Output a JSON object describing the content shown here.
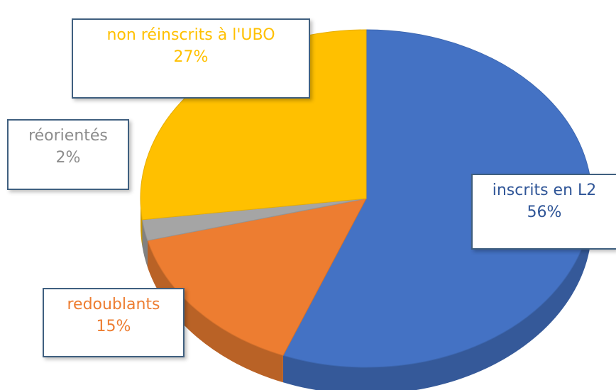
{
  "chart_data": {
    "type": "pie",
    "style": "3d",
    "slices": [
      {
        "label": "inscrits en L2",
        "value": 56,
        "display": "56%",
        "color": "#4472c4"
      },
      {
        "label": "redoublants",
        "value": 15,
        "display": "15%",
        "color": "#ed7d31"
      },
      {
        "label": "réorientés",
        "value": 2,
        "display": "2%",
        "color": "#a5a5a5"
      },
      {
        "label": "non réinscrits à l'UBO",
        "value": 27,
        "display": "27%",
        "color": "#ffc000"
      }
    ],
    "title": "",
    "legend": "none",
    "data_labels": "callout boxes"
  }
}
